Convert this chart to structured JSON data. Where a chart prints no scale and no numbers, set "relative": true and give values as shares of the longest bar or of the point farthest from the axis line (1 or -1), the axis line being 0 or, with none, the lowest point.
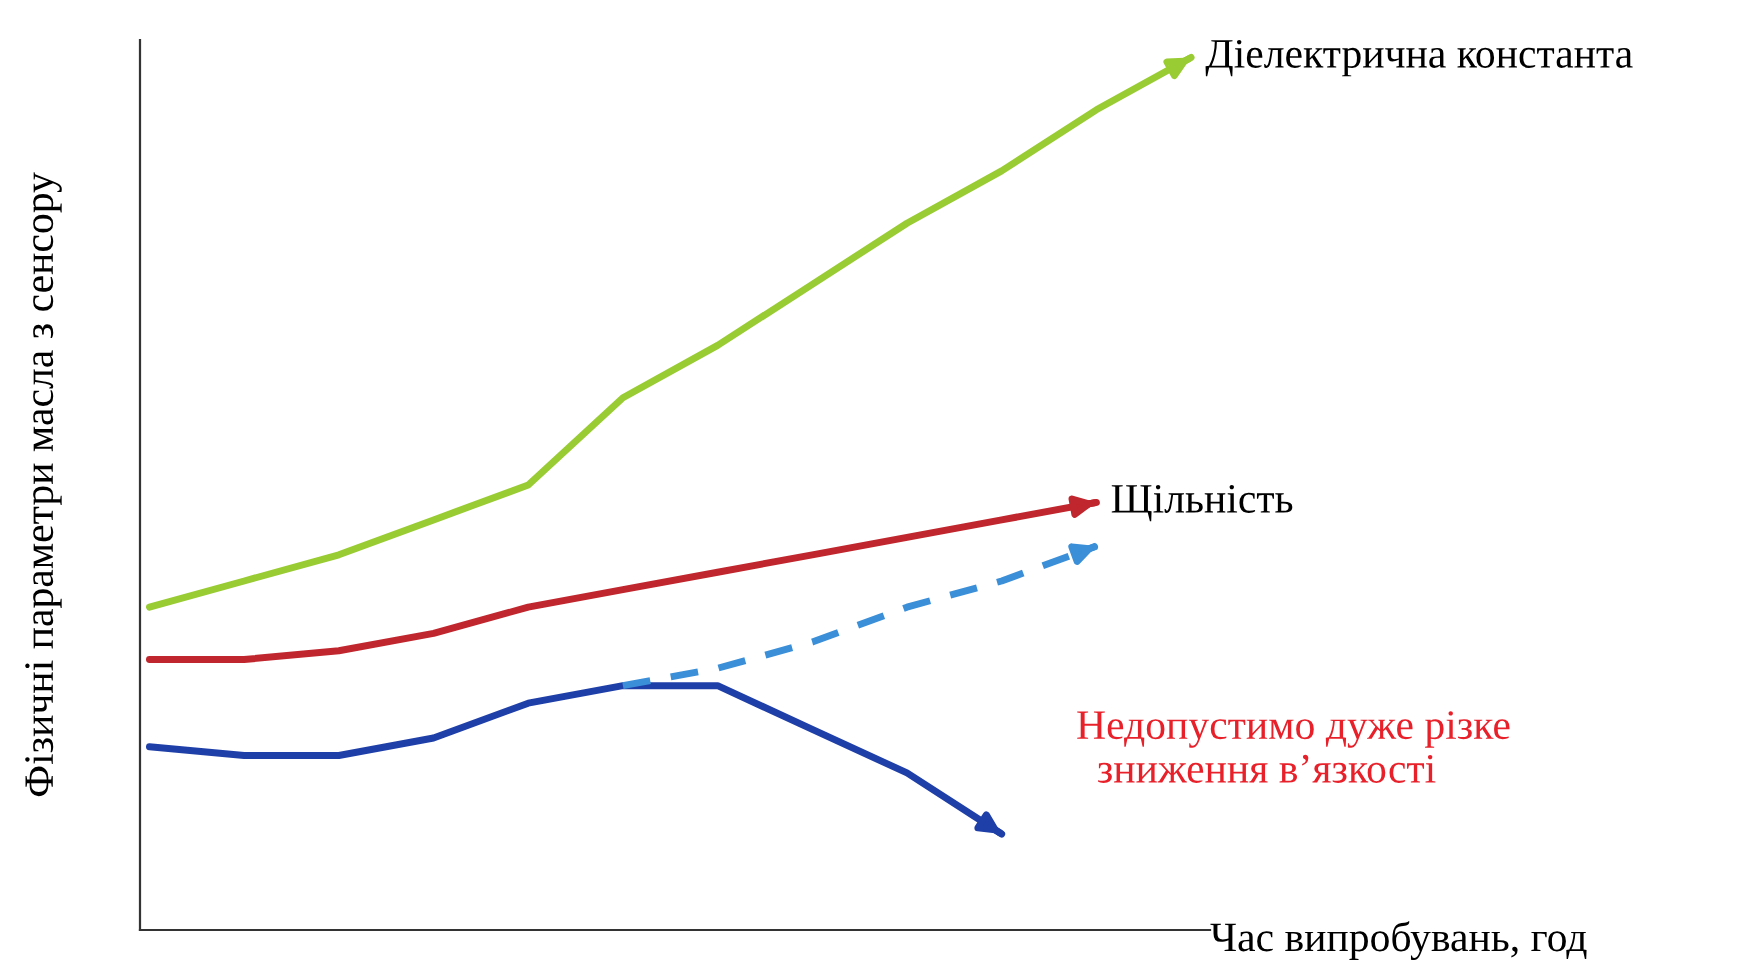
{
  "chart_data": {
    "type": "line",
    "relative": true,
    "xlabel": "Час випробувань, год",
    "ylabel": "Фізичні параметри масла з сенсору",
    "categories": [
      null,
      null,
      null,
      null,
      null,
      null,
      null,
      null,
      null,
      null,
      null,
      null
    ],
    "series": [
      {
        "name": "Діелектрична константа",
        "color": "#99cc33",
        "values": [
          0.37,
          0.4,
          0.43,
          0.47,
          0.51,
          0.61,
          0.67,
          0.74,
          0.81,
          0.87,
          0.94,
          1.0
        ]
      },
      {
        "name": "Щільність",
        "color": "#c0262d",
        "values": [
          0.31,
          0.31,
          0.32,
          0.34,
          0.37,
          0.39,
          0.41,
          0.43,
          0.45,
          0.47,
          0.49,
          null
        ]
      },
      {
        "color": "#1f3fa8",
        "values": [
          0.21,
          0.2,
          0.2,
          0.22,
          0.26,
          0.28,
          0.28,
          0.23,
          0.18,
          0.11,
          null,
          null
        ]
      },
      {
        "color": "#3a8fd8",
        "line_style": "dashed",
        "values": [
          null,
          null,
          null,
          null,
          null,
          0.28,
          0.3,
          0.33,
          0.37,
          0.4,
          0.44,
          null
        ]
      }
    ],
    "annotations": [
      "Недопустимо дуже різке\n  зниження в’язкості"
    ],
    "legend": "right",
    "grid": false,
    "marker": "none"
  }
}
